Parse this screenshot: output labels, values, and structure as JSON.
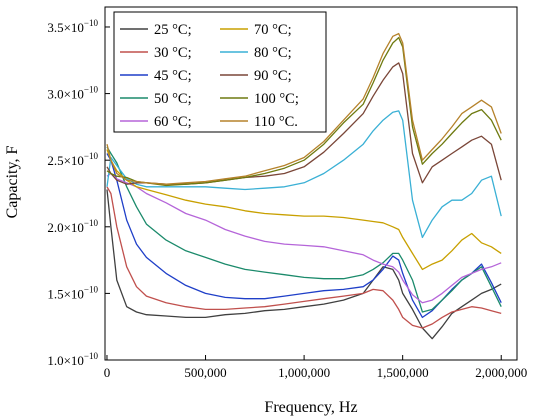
{
  "chart_data": {
    "type": "line",
    "title": "",
    "xlabel": "Frequency, Hz",
    "ylabel": "Capacity, F",
    "xlim": [
      -10000,
      2080000
    ],
    "ylim": [
      1e-10,
      3.65e-10
    ],
    "grid": false,
    "legend_position": "top-left",
    "x_ticks": [
      {
        "value": 0,
        "label": "0"
      },
      {
        "value": 500000,
        "label": "500,000"
      },
      {
        "value": 1000000,
        "label": "1,000,000"
      },
      {
        "value": 1500000,
        "label": "1,500,000"
      },
      {
        "value": 2000000,
        "label": "2,000,000"
      }
    ],
    "y_ticks": [
      {
        "value": 1e-10,
        "mantissa": "1.0",
        "base": "×10",
        "exponent": "−10"
      },
      {
        "value": 1.5e-10,
        "mantissa": "1.5",
        "base": "×10",
        "exponent": "−10"
      },
      {
        "value": 2e-10,
        "mantissa": "2.0",
        "base": "×10",
        "exponent": "−10"
      },
      {
        "value": 2.5e-10,
        "mantissa": "2.5",
        "base": "×10",
        "exponent": "−10"
      },
      {
        "value": 3e-10,
        "mantissa": "3.0",
        "base": "×10",
        "exponent": "−10"
      },
      {
        "value": 3.5e-10,
        "mantissa": "3.5",
        "base": "×10",
        "exponent": "−10"
      }
    ],
    "x": [
      0,
      20000,
      50000,
      100000,
      150000,
      200000,
      300000,
      400000,
      500000,
      600000,
      700000,
      800000,
      900000,
      1000000,
      1100000,
      1200000,
      1300000,
      1350000,
      1400000,
      1450000,
      1480000,
      1500000,
      1550000,
      1600000,
      1650000,
      1700000,
      1750000,
      1800000,
      1850000,
      1900000,
      1950000,
      2000000
    ],
    "series": [
      {
        "name": "25 °C;",
        "color": "#404040",
        "values": [
          2.28e-10,
          2e-10,
          1.6e-10,
          1.4e-10,
          1.36e-10,
          1.34e-10,
          1.33e-10,
          1.32e-10,
          1.32e-10,
          1.34e-10,
          1.35e-10,
          1.37e-10,
          1.38e-10,
          1.4e-10,
          1.42e-10,
          1.45e-10,
          1.5e-10,
          1.6e-10,
          1.7e-10,
          1.68e-10,
          1.6e-10,
          1.5e-10,
          1.38e-10,
          1.24e-10,
          1.16e-10,
          1.25e-10,
          1.35e-10,
          1.4e-10,
          1.45e-10,
          1.5e-10,
          1.53e-10,
          1.57e-10
        ]
      },
      {
        "name": "30 °C;",
        "color": "#c0504d",
        "values": [
          2.3e-10,
          2.25e-10,
          2e-10,
          1.7e-10,
          1.55e-10,
          1.48e-10,
          1.43e-10,
          1.4e-10,
          1.38e-10,
          1.38e-10,
          1.39e-10,
          1.4e-10,
          1.42e-10,
          1.44e-10,
          1.46e-10,
          1.48e-10,
          1.5e-10,
          1.53e-10,
          1.52e-10,
          1.45e-10,
          1.38e-10,
          1.32e-10,
          1.26e-10,
          1.24e-10,
          1.27e-10,
          1.32e-10,
          1.36e-10,
          1.38e-10,
          1.4e-10,
          1.39e-10,
          1.37e-10,
          1.35e-10
        ]
      },
      {
        "name": "45 °C;",
        "color": "#1f3fc8",
        "values": [
          2.55e-10,
          2.5e-10,
          2.35e-10,
          2.05e-10,
          1.87e-10,
          1.77e-10,
          1.65e-10,
          1.56e-10,
          1.5e-10,
          1.47e-10,
          1.46e-10,
          1.46e-10,
          1.48e-10,
          1.5e-10,
          1.52e-10,
          1.53e-10,
          1.55e-10,
          1.6e-10,
          1.68e-10,
          1.78e-10,
          1.75e-10,
          1.65e-10,
          1.45e-10,
          1.32e-10,
          1.37e-10,
          1.45e-10,
          1.53e-10,
          1.6e-10,
          1.65e-10,
          1.72e-10,
          1.58e-10,
          1.43e-10
        ]
      },
      {
        "name": "50 °C;",
        "color": "#1b8a6b",
        "values": [
          2.6e-10,
          2.55e-10,
          2.48e-10,
          2.3e-10,
          2.15e-10,
          2.02e-10,
          1.9e-10,
          1.82e-10,
          1.77e-10,
          1.72e-10,
          1.68e-10,
          1.66e-10,
          1.64e-10,
          1.62e-10,
          1.61e-10,
          1.61e-10,
          1.64e-10,
          1.68e-10,
          1.73e-10,
          1.8e-10,
          1.8e-10,
          1.75e-10,
          1.6e-10,
          1.36e-10,
          1.38e-10,
          1.45e-10,
          1.52e-10,
          1.6e-10,
          1.65e-10,
          1.7e-10,
          1.55e-10,
          1.4e-10
        ]
      },
      {
        "name": "60 °C;",
        "color": "#b565d9",
        "values": [
          2.38e-10,
          2.4e-10,
          2.36e-10,
          2.33e-10,
          2.3e-10,
          2.25e-10,
          2.18e-10,
          2.1e-10,
          2.05e-10,
          1.98e-10,
          1.93e-10,
          1.89e-10,
          1.87e-10,
          1.86e-10,
          1.85e-10,
          1.82e-10,
          1.79e-10,
          1.75e-10,
          1.72e-10,
          1.7e-10,
          1.66e-10,
          1.6e-10,
          1.49e-10,
          1.43e-10,
          1.45e-10,
          1.5e-10,
          1.56e-10,
          1.62e-10,
          1.65e-10,
          1.68e-10,
          1.7e-10,
          1.73e-10
        ]
      },
      {
        "name": "70 °C;",
        "color": "#c8a000",
        "values": [
          2.58e-10,
          2.5e-10,
          2.42e-10,
          2.35e-10,
          2.3e-10,
          2.28e-10,
          2.24e-10,
          2.2e-10,
          2.17e-10,
          2.15e-10,
          2.12e-10,
          2.1e-10,
          2.09e-10,
          2.08e-10,
          2.08e-10,
          2.07e-10,
          2.05e-10,
          2.04e-10,
          2.03e-10,
          2e-10,
          1.98e-10,
          1.92e-10,
          1.8e-10,
          1.68e-10,
          1.72e-10,
          1.75e-10,
          1.82e-10,
          1.9e-10,
          1.95e-10,
          1.88e-10,
          1.85e-10,
          1.8e-10
        ]
      },
      {
        "name": "80 °C;",
        "color": "#3ab0d5",
        "values": [
          2.3e-10,
          2.52e-10,
          2.46e-10,
          2.36e-10,
          2.32e-10,
          2.3e-10,
          2.3e-10,
          2.3e-10,
          2.3e-10,
          2.29e-10,
          2.28e-10,
          2.29e-10,
          2.3e-10,
          2.33e-10,
          2.4e-10,
          2.5e-10,
          2.62e-10,
          2.72e-10,
          2.8e-10,
          2.86e-10,
          2.87e-10,
          2.8e-10,
          2.2e-10,
          1.92e-10,
          2.05e-10,
          2.15e-10,
          2.2e-10,
          2.2e-10,
          2.25e-10,
          2.35e-10,
          2.38e-10,
          2.08e-10
        ]
      },
      {
        "name": "90 °C;",
        "color": "#7a4638",
        "values": [
          2.45e-10,
          2.4e-10,
          2.35e-10,
          2.32e-10,
          2.33e-10,
          2.33e-10,
          2.32e-10,
          2.32e-10,
          2.33e-10,
          2.35e-10,
          2.37e-10,
          2.38e-10,
          2.4e-10,
          2.45e-10,
          2.56e-10,
          2.7e-10,
          2.85e-10,
          2.98e-10,
          3.1e-10,
          3.2e-10,
          3.23e-10,
          3.15e-10,
          2.55e-10,
          2.33e-10,
          2.45e-10,
          2.5e-10,
          2.55e-10,
          2.6e-10,
          2.65e-10,
          2.68e-10,
          2.62e-10,
          2.35e-10
        ]
      },
      {
        "name": "100 °C;",
        "color": "#6e7a10",
        "values": [
          2.42e-10,
          2.4e-10,
          2.38e-10,
          2.37e-10,
          2.34e-10,
          2.33e-10,
          2.31e-10,
          2.32e-10,
          2.33e-10,
          2.35e-10,
          2.37e-10,
          2.4e-10,
          2.44e-10,
          2.5e-10,
          2.62e-10,
          2.78e-10,
          2.92e-10,
          3.08e-10,
          3.25e-10,
          3.38e-10,
          3.42e-10,
          3.35e-10,
          2.75e-10,
          2.47e-10,
          2.55e-10,
          2.62e-10,
          2.7e-10,
          2.78e-10,
          2.85e-10,
          2.88e-10,
          2.8e-10,
          2.65e-10
        ]
      },
      {
        "name": "110 °C.",
        "color": "#b5822b",
        "values": [
          2.62e-10,
          2.5e-10,
          2.4e-10,
          2.35e-10,
          2.34e-10,
          2.33e-10,
          2.32e-10,
          2.33e-10,
          2.34e-10,
          2.36e-10,
          2.38e-10,
          2.42e-10,
          2.46e-10,
          2.52e-10,
          2.64e-10,
          2.8e-10,
          2.96e-10,
          3.12e-10,
          3.3e-10,
          3.43e-10,
          3.45e-10,
          3.38e-10,
          2.8e-10,
          2.5e-10,
          2.58e-10,
          2.66e-10,
          2.75e-10,
          2.85e-10,
          2.9e-10,
          2.95e-10,
          2.9e-10,
          2.7e-10
        ]
      }
    ]
  }
}
